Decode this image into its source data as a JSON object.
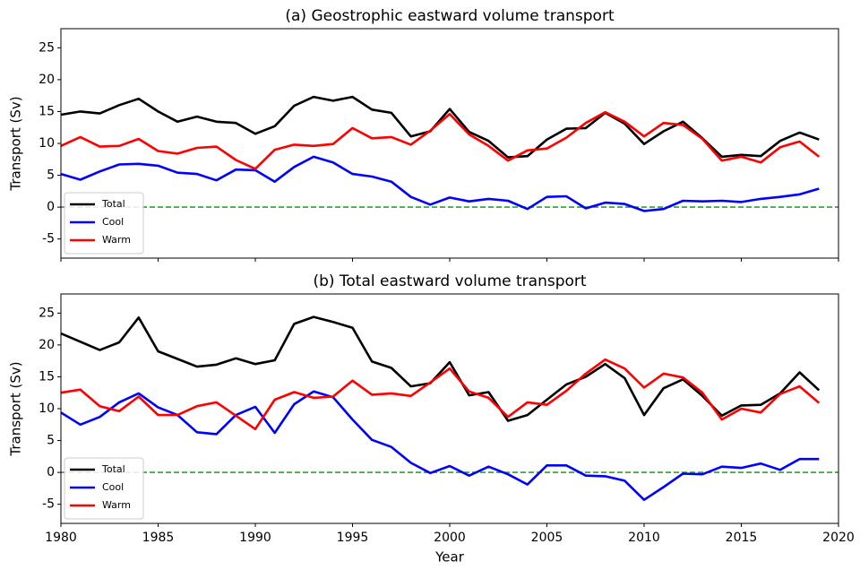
{
  "chart_data": [
    {
      "type": "line",
      "title": "(a) Geostrophic eastward volume transport",
      "ylabel": "Transport (Sv)",
      "x": [
        1980,
        1981,
        1982,
        1983,
        1984,
        1985,
        1986,
        1987,
        1988,
        1989,
        1990,
        1991,
        1992,
        1993,
        1994,
        1995,
        1996,
        1997,
        1998,
        1999,
        2000,
        2001,
        2002,
        2003,
        2004,
        2005,
        2006,
        2007,
        2008,
        2009,
        2010,
        2011,
        2012,
        2013,
        2014,
        2015,
        2016,
        2017,
        2018,
        2019
      ],
      "series": [
        {
          "name": "Total",
          "color": "#000000",
          "values": [
            14.5,
            15.0,
            14.7,
            16.0,
            17.0,
            15.0,
            13.4,
            14.2,
            13.4,
            13.2,
            11.5,
            12.7,
            15.9,
            17.3,
            16.7,
            17.3,
            15.3,
            14.8,
            11.1,
            11.9,
            15.4,
            11.8,
            10.4,
            7.8,
            8.0,
            10.6,
            12.3,
            12.4,
            14.8,
            13.1,
            9.9,
            11.9,
            13.4,
            10.8,
            7.9,
            8.2,
            8.0,
            10.4,
            11.7,
            10.6
          ]
        },
        {
          "name": "Cool",
          "color": "#0000ff",
          "values": [
            5.2,
            4.3,
            5.6,
            6.7,
            6.8,
            6.5,
            5.4,
            5.2,
            4.2,
            5.9,
            5.8,
            4.0,
            6.3,
            7.9,
            7.0,
            5.2,
            4.8,
            4.0,
            1.6,
            0.4,
            1.5,
            0.9,
            1.3,
            1.0,
            -0.3,
            1.6,
            1.7,
            -0.2,
            0.7,
            0.5,
            -0.6,
            -0.3,
            1.0,
            0.9,
            1.0,
            0.8,
            1.3,
            1.6,
            2.0,
            2.9
          ]
        },
        {
          "name": "Warm",
          "color": "#ff0000",
          "values": [
            9.6,
            11.0,
            9.5,
            9.6,
            10.7,
            8.8,
            8.4,
            9.3,
            9.5,
            7.4,
            6.0,
            9.0,
            9.8,
            9.6,
            9.9,
            12.4,
            10.8,
            11.0,
            9.8,
            12.0,
            14.6,
            11.4,
            9.6,
            7.3,
            8.9,
            9.2,
            10.9,
            13.2,
            14.9,
            13.4,
            11.1,
            13.2,
            12.9,
            10.7,
            7.3,
            7.9,
            7.0,
            9.4,
            10.3,
            7.9
          ]
        }
      ],
      "xlim": [
        1980,
        2020
      ],
      "xticks": [
        1980,
        1985,
        1990,
        1995,
        2000,
        2005,
        2010,
        2015,
        2020
      ],
      "show_xtick_labels": false,
      "ylim": [
        -8,
        28
      ],
      "yticks": [
        -5,
        0,
        5,
        10,
        15,
        20,
        25
      ],
      "hline": 0,
      "hline_color": "#2ca02c",
      "legend": "lower-left"
    },
    {
      "type": "line",
      "title": "(b) Total eastward volume transport",
      "ylabel": "Transport (Sv)",
      "xlabel": "Year",
      "x": [
        1980,
        1981,
        1982,
        1983,
        1984,
        1985,
        1986,
        1987,
        1988,
        1989,
        1990,
        1991,
        1992,
        1993,
        1994,
        1995,
        1996,
        1997,
        1998,
        1999,
        2000,
        2001,
        2002,
        2003,
        2004,
        2005,
        2006,
        2007,
        2008,
        2009,
        2010,
        2011,
        2012,
        2013,
        2014,
        2015,
        2016,
        2017,
        2018,
        2019
      ],
      "series": [
        {
          "name": "Total",
          "color": "#000000",
          "values": [
            21.8,
            20.5,
            19.2,
            20.4,
            24.3,
            19.0,
            17.8,
            16.6,
            16.9,
            17.9,
            17.0,
            17.6,
            23.3,
            24.4,
            23.6,
            22.7,
            17.4,
            16.4,
            13.5,
            14.0,
            17.3,
            12.1,
            12.6,
            8.1,
            9.0,
            11.4,
            13.8,
            15.0,
            17.0,
            14.8,
            9.0,
            13.2,
            14.6,
            12.0,
            8.9,
            10.5,
            10.6,
            12.4,
            15.7,
            12.9
          ]
        },
        {
          "name": "Cool",
          "color": "#0000ff",
          "values": [
            9.4,
            7.5,
            8.7,
            11.0,
            12.4,
            10.2,
            9.0,
            6.3,
            6.0,
            9.0,
            10.3,
            6.2,
            10.7,
            12.7,
            11.8,
            8.3,
            5.1,
            4.0,
            1.5,
            -0.1,
            1.0,
            -0.5,
            0.9,
            -0.3,
            -1.9,
            1.1,
            1.1,
            -0.5,
            -0.6,
            -1.3,
            -4.3,
            -2.3,
            -0.2,
            -0.3,
            0.9,
            0.7,
            1.4,
            0.4,
            2.1,
            2.1
          ]
        },
        {
          "name": "Warm",
          "color": "#ff0000",
          "values": [
            12.5,
            13.0,
            10.4,
            9.6,
            11.9,
            9.0,
            9.0,
            10.4,
            11.0,
            8.9,
            6.8,
            11.4,
            12.6,
            11.7,
            11.9,
            14.4,
            12.2,
            12.4,
            12.0,
            14.1,
            16.3,
            12.7,
            11.7,
            8.7,
            11.0,
            10.6,
            12.8,
            15.5,
            17.7,
            16.3,
            13.3,
            15.5,
            14.9,
            12.5,
            8.3,
            10.0,
            9.4,
            12.3,
            13.5,
            10.9
          ]
        }
      ],
      "xlim": [
        1980,
        2020
      ],
      "xticks": [
        1980,
        1985,
        1990,
        1995,
        2000,
        2005,
        2010,
        2015,
        2020
      ],
      "show_xtick_labels": true,
      "ylim": [
        -8,
        28
      ],
      "yticks": [
        -5,
        0,
        5,
        10,
        15,
        20,
        25
      ],
      "hline": 0,
      "hline_color": "#2ca02c",
      "legend": "lower-left"
    }
  ]
}
